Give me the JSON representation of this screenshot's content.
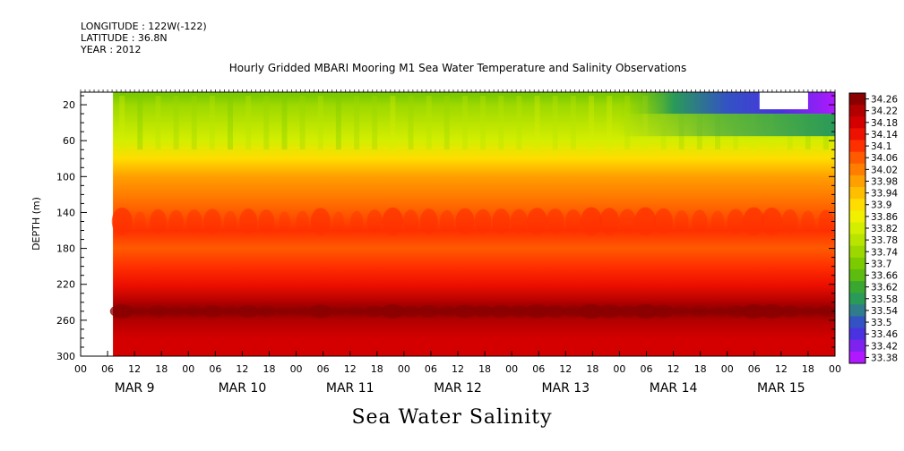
{
  "header": {
    "longitude": "LONGITUDE : 122W(-122)",
    "latitude": "LATITUDE : 36.8N",
    "year": "YEAR : 2012"
  },
  "bottom_title": "Sea Water Salinity",
  "chart_data": {
    "type": "heatmap",
    "title": "Hourly Gridded MBARI Mooring M1 Sea Water Temperature and Salinity Observations",
    "xlabel": "",
    "ylabel": "DEPTH (m)",
    "variable": "Sea Water Salinity",
    "x_hour_ticks": [
      "00",
      "06",
      "12",
      "18",
      "00",
      "06",
      "12",
      "18",
      "00",
      "06",
      "12",
      "18",
      "00",
      "06",
      "12",
      "18",
      "00",
      "06",
      "12",
      "18",
      "00",
      "06",
      "12",
      "18",
      "00",
      "06",
      "12",
      "18",
      "00"
    ],
    "x_day_labels": [
      "MAR  9",
      "MAR 10",
      "MAR 11",
      "MAR 12",
      "MAR 13",
      "MAR 14",
      "MAR 15"
    ],
    "x_range_days": [
      0,
      7
    ],
    "data_start_day": 0.3,
    "y_ticks": [
      20,
      60,
      100,
      140,
      180,
      220,
      260,
      300
    ],
    "y_range": [
      300,
      6
    ],
    "y_reversed": true,
    "colorbar_levels": [
      "34.26",
      "34.22",
      "34.18",
      "34.14",
      "34.1",
      "34.06",
      "34.02",
      "33.98",
      "33.94",
      "33.9",
      "33.86",
      "33.82",
      "33.78",
      "33.74",
      "33.7",
      "33.66",
      "33.62",
      "33.58",
      "33.54",
      "33.5",
      "33.46",
      "33.42",
      "33.38"
    ],
    "colorbar_colors": [
      "#8a0000",
      "#b20000",
      "#d40000",
      "#ee1000",
      "#ff3000",
      "#ff5a00",
      "#ff7e00",
      "#ff9f00",
      "#ffbf00",
      "#ffdd00",
      "#f0f000",
      "#d4ee00",
      "#b8e400",
      "#9cd800",
      "#7cca00",
      "#5ebc10",
      "#3aa830",
      "#2a9a58",
      "#2f7c8c",
      "#3352c4",
      "#4a32e0",
      "#7e22f0",
      "#b018ff"
    ],
    "depth_profile": [
      {
        "depth": 10,
        "salinity": 33.72
      },
      {
        "depth": 20,
        "salinity": 33.74
      },
      {
        "depth": 40,
        "salinity": 33.78
      },
      {
        "depth": 60,
        "salinity": 33.82
      },
      {
        "depth": 80,
        "salinity": 33.9
      },
      {
        "depth": 100,
        "salinity": 33.97
      },
      {
        "depth": 120,
        "salinity": 34.04
      },
      {
        "depth": 140,
        "salinity": 34.08
      },
      {
        "depth": 160,
        "salinity": 34.1
      },
      {
        "depth": 180,
        "salinity": 34.06
      },
      {
        "depth": 200,
        "salinity": 34.1
      },
      {
        "depth": 220,
        "salinity": 34.16
      },
      {
        "depth": 240,
        "salinity": 34.22
      },
      {
        "depth": 250,
        "salinity": 34.26
      },
      {
        "depth": 260,
        "salinity": 34.22
      },
      {
        "depth": 280,
        "salinity": 34.18
      },
      {
        "depth": 300,
        "salinity": 34.18
      }
    ],
    "surface_freshening": [
      {
        "day": 5.0,
        "salinity": 33.7
      },
      {
        "day": 5.5,
        "salinity": 33.58
      },
      {
        "day": 6.0,
        "salinity": 33.5
      },
      {
        "day": 6.5,
        "salinity": 33.45
      },
      {
        "day": 7.0,
        "salinity": 33.38
      }
    ]
  }
}
